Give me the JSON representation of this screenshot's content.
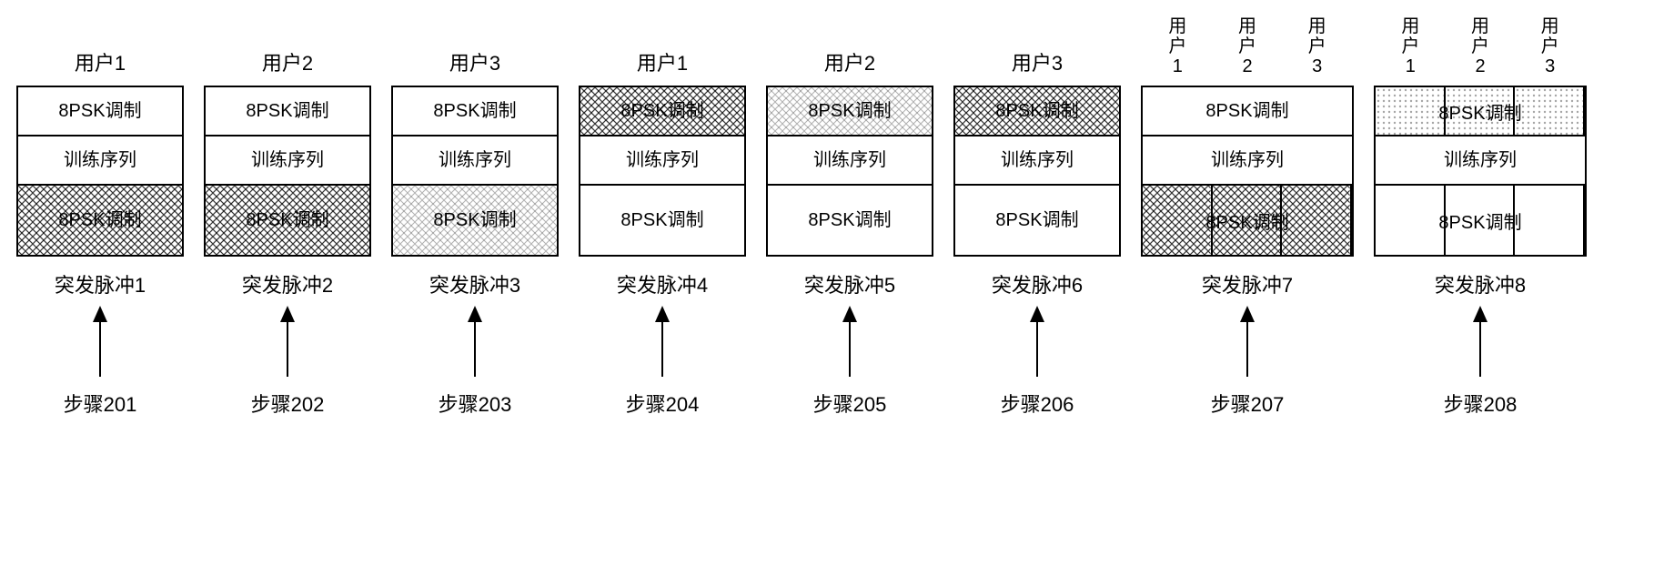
{
  "labels": {
    "psk": "8PSK调制",
    "train": "训练序列",
    "burst_prefix": "突发脉冲",
    "step_prefix": "步骤",
    "user_prefix": "用户",
    "user_char": "用户"
  },
  "colors": {
    "stroke": "#000000",
    "hatchDark": "#555555",
    "background": "#ffffff"
  },
  "patterns": {
    "none": {
      "fill": "#ffffff",
      "style": "none"
    },
    "darkCross": {
      "style": "cross",
      "opacity": 0.8,
      "spacing": 8,
      "strokeWidth": 1.2
    },
    "lightCross": {
      "style": "cross",
      "opacity": 0.3,
      "spacing": 8,
      "strokeWidth": 1.0
    },
    "dots": {
      "style": "dots",
      "opacity": 0.35,
      "spacing": 6,
      "r": 1.2
    }
  },
  "arrow": {
    "height": 78,
    "width": 28,
    "headHeight": 18,
    "stroke": "#000000",
    "strokeWidth": 2
  },
  "bursts": [
    {
      "n": 1,
      "step": 201,
      "wide": false,
      "userLabels": [
        "用户1"
      ],
      "rows": [
        {
          "cells": [
            {
              "pattern": "none",
              "text": "8PSK调制"
            }
          ]
        },
        {
          "cells": [
            {
              "pattern": "none",
              "text": "训练序列"
            }
          ]
        },
        {
          "cells": [
            {
              "pattern": "darkCross",
              "text": "8PSK调制"
            }
          ]
        }
      ]
    },
    {
      "n": 2,
      "step": 202,
      "wide": false,
      "userLabels": [
        "用户2"
      ],
      "rows": [
        {
          "cells": [
            {
              "pattern": "none",
              "text": "8PSK调制"
            }
          ]
        },
        {
          "cells": [
            {
              "pattern": "none",
              "text": "训练序列"
            }
          ]
        },
        {
          "cells": [
            {
              "pattern": "darkCross",
              "text": "8PSK调制"
            }
          ]
        }
      ]
    },
    {
      "n": 3,
      "step": 203,
      "wide": false,
      "userLabels": [
        "用户3"
      ],
      "rows": [
        {
          "cells": [
            {
              "pattern": "none",
              "text": "8PSK调制"
            }
          ]
        },
        {
          "cells": [
            {
              "pattern": "none",
              "text": "训练序列"
            }
          ]
        },
        {
          "cells": [
            {
              "pattern": "lightCross",
              "text": "8PSK调制"
            }
          ]
        }
      ]
    },
    {
      "n": 4,
      "step": 204,
      "wide": false,
      "userLabels": [
        "用户1"
      ],
      "rows": [
        {
          "cells": [
            {
              "pattern": "darkCross",
              "text": "8PSK调制"
            }
          ]
        },
        {
          "cells": [
            {
              "pattern": "none",
              "text": "训练序列"
            }
          ]
        },
        {
          "cells": [
            {
              "pattern": "none",
              "text": "8PSK调制"
            }
          ]
        }
      ]
    },
    {
      "n": 5,
      "step": 205,
      "wide": false,
      "userLabels": [
        "用户2"
      ],
      "rows": [
        {
          "cells": [
            {
              "pattern": "lightCross",
              "text": "8PSK调制"
            }
          ]
        },
        {
          "cells": [
            {
              "pattern": "none",
              "text": "训练序列"
            }
          ]
        },
        {
          "cells": [
            {
              "pattern": "none",
              "text": "8PSK调制"
            }
          ]
        }
      ]
    },
    {
      "n": 6,
      "step": 206,
      "wide": false,
      "userLabels": [
        "用户3"
      ],
      "rows": [
        {
          "cells": [
            {
              "pattern": "darkCross",
              "text": "8PSK调制"
            }
          ]
        },
        {
          "cells": [
            {
              "pattern": "none",
              "text": "训练序列"
            }
          ]
        },
        {
          "cells": [
            {
              "pattern": "none",
              "text": "8PSK调制"
            }
          ]
        }
      ]
    },
    {
      "n": 7,
      "step": 207,
      "wide": true,
      "userLabels": [
        "用户1",
        "用户2",
        "用户3"
      ],
      "rows": [
        {
          "cells": [
            {
              "pattern": "none",
              "text": "8PSK调制",
              "colspan": 3
            }
          ]
        },
        {
          "cells": [
            {
              "pattern": "none",
              "text": "训练序列",
              "colspan": 3
            }
          ]
        },
        {
          "cells": [
            {
              "pattern": "darkCross",
              "text": "8PSK"
            },
            {
              "pattern": "darkCross",
              "text": "调"
            },
            {
              "pattern": "darkCross",
              "text": "制"
            }
          ],
          "overlayText": "8PSK调制"
        }
      ]
    },
    {
      "n": 8,
      "step": 208,
      "wide": true,
      "userLabels": [
        "用户1",
        "用户2",
        "用户3"
      ],
      "rows": [
        {
          "cells": [
            {
              "pattern": "dots",
              "text": ""
            },
            {
              "pattern": "dots",
              "text": ""
            },
            {
              "pattern": "dots",
              "text": ""
            }
          ],
          "overlayText": "8PSK调制"
        },
        {
          "cells": [
            {
              "pattern": "none",
              "text": "训练序列",
              "colspan": 3
            }
          ]
        },
        {
          "cells": [
            {
              "pattern": "none",
              "text": ""
            },
            {
              "pattern": "none",
              "text": ""
            },
            {
              "pattern": "none",
              "text": ""
            }
          ],
          "overlayText": "8PSK调制"
        }
      ]
    }
  ]
}
